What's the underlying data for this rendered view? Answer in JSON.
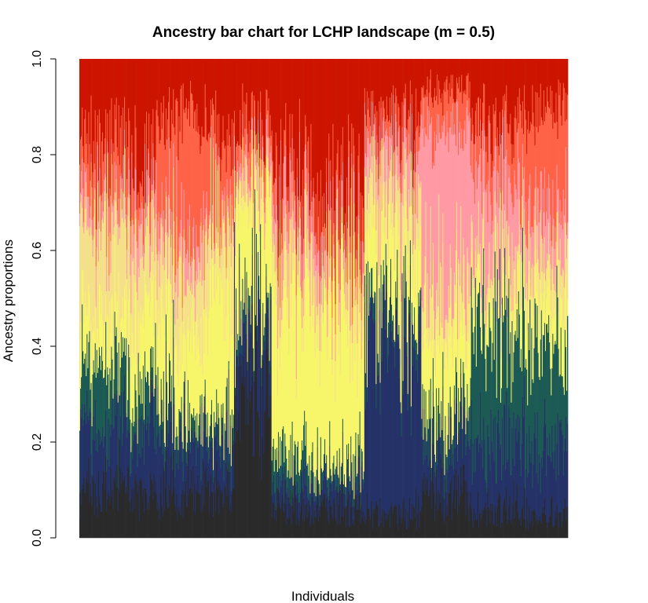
{
  "chart_data": {
    "type": "bar",
    "title": "Ancestry bar chart for LCHP landscape (m = 0.5)",
    "xlabel": "Individuals",
    "ylabel": "Ancestry proportions",
    "ylim": [
      0,
      1
    ],
    "yticks": [
      "0.0",
      "0.2",
      "0.4",
      "0.6",
      "0.8",
      "1.0"
    ],
    "stacked": true,
    "n_individuals": 600,
    "colors": [
      "#2a2a2a",
      "#253268",
      "#1d5a55",
      "#f7f56a",
      "#f5e08a",
      "#ff9aa5",
      "#ff6347",
      "#cc1500"
    ],
    "regions": [
      {
        "individuals": [
          1,
          60
        ],
        "mean_proportions": [
          0.1,
          0.14,
          0.12,
          0.09,
          0.2,
          0.05,
          0.1,
          0.2
        ]
      },
      {
        "individuals": [
          61,
          95
        ],
        "mean_proportions": [
          0.09,
          0.14,
          0.09,
          0.14,
          0.15,
          0.08,
          0.08,
          0.23
        ]
      },
      {
        "individuals": [
          96,
          156
        ],
        "mean_proportions": [
          0.1,
          0.14,
          0.04,
          0.17,
          0.13,
          0.07,
          0.23,
          0.12
        ]
      },
      {
        "individuals": [
          157,
          190
        ],
        "mean_proportions": [
          0.09,
          0.11,
          0.04,
          0.27,
          0.16,
          0.03,
          0.16,
          0.14
        ]
      },
      {
        "individuals": [
          191,
          236
        ],
        "mean_proportions": [
          0.32,
          0.14,
          0.04,
          0.22,
          0.03,
          0.05,
          0.06,
          0.14
        ]
      },
      {
        "individuals": [
          237,
          290
        ],
        "mean_proportions": [
          0.06,
          0.05,
          0.06,
          0.35,
          0.06,
          0.11,
          0.07,
          0.24
        ]
      },
      {
        "individuals": [
          291,
          350
        ],
        "mean_proportions": [
          0.06,
          0.06,
          0.03,
          0.33,
          0.07,
          0.07,
          0.08,
          0.3
        ]
      },
      {
        "individuals": [
          351,
          420
        ],
        "mean_proportions": [
          0.05,
          0.36,
          0.04,
          0.16,
          0.1,
          0.11,
          0.05,
          0.13
        ]
      },
      {
        "individuals": [
          421,
          480
        ],
        "mean_proportions": [
          0.09,
          0.12,
          0.06,
          0.18,
          0.08,
          0.33,
          0.08,
          0.06
        ]
      },
      {
        "individuals": [
          481,
          540
        ],
        "mean_proportions": [
          0.06,
          0.14,
          0.25,
          0.07,
          0.06,
          0.18,
          0.1,
          0.14
        ]
      },
      {
        "individuals": [
          541,
          600
        ],
        "mean_proportions": [
          0.05,
          0.14,
          0.22,
          0.1,
          0.09,
          0.1,
          0.19,
          0.11
        ]
      }
    ]
  }
}
